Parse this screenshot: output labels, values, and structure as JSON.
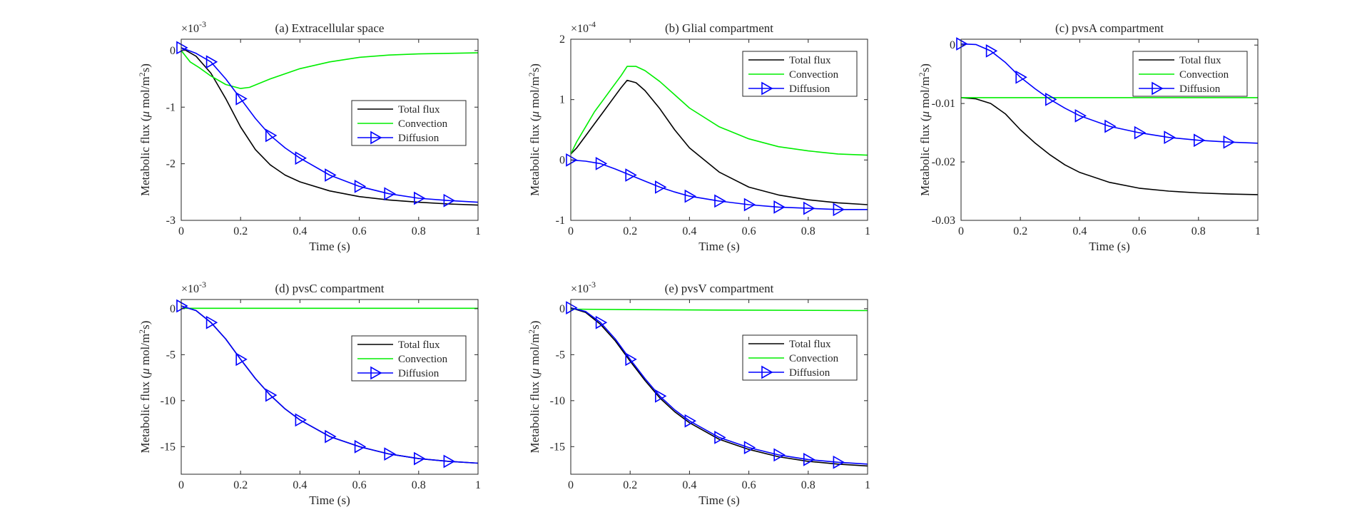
{
  "chart_data": [
    {
      "type": "line",
      "title": "(a) Extracellular space",
      "xlabel": "Time (s)",
      "ylabel_prefix": "Metabolic flux (",
      "ylabel_mu": "μ",
      "ylabel_unit": " mol/m",
      "ylabel_sup": "2",
      "ylabel_suffix": "s)",
      "exp_base": "×10",
      "exp_power": "-3",
      "xlim": [
        0,
        1
      ],
      "ylim": [
        -3,
        0.2
      ],
      "xticks": [
        0,
        0.2,
        0.4,
        0.6,
        0.8,
        1
      ],
      "xtick_labels": [
        "0",
        "0.2",
        "0.4",
        "0.6",
        "0.8",
        "1"
      ],
      "yticks": [
        -3,
        -2,
        -1,
        0
      ],
      "ytick_labels": [
        "-3",
        "-2",
        "-1",
        "0"
      ],
      "legend_position": "center-right",
      "series": [
        {
          "name": "Total flux",
          "color": "#000000",
          "marker": "none",
          "x": [
            0,
            0.05,
            0.1,
            0.15,
            0.2,
            0.25,
            0.3,
            0.35,
            0.4,
            0.5,
            0.6,
            0.7,
            0.8,
            0.9,
            1.0
          ],
          "y": [
            0.05,
            -0.1,
            -0.4,
            -0.85,
            -1.35,
            -1.75,
            -2.02,
            -2.2,
            -2.32,
            -2.48,
            -2.58,
            -2.64,
            -2.68,
            -2.71,
            -2.73
          ]
        },
        {
          "name": "Convection",
          "color": "#00ee00",
          "marker": "none",
          "x": [
            0,
            0.03,
            0.06,
            0.1,
            0.15,
            0.2,
            0.23,
            0.3,
            0.4,
            0.5,
            0.6,
            0.7,
            0.8,
            0.9,
            1.0
          ],
          "y": [
            0,
            -0.2,
            -0.3,
            -0.45,
            -0.6,
            -0.67,
            -0.65,
            -0.5,
            -0.32,
            -0.2,
            -0.12,
            -0.08,
            -0.06,
            -0.05,
            -0.04
          ]
        },
        {
          "name": "Diffusion",
          "color": "#0000ff",
          "marker": "triangle-right",
          "x": [
            0,
            0.05,
            0.1,
            0.15,
            0.2,
            0.25,
            0.3,
            0.35,
            0.4,
            0.5,
            0.6,
            0.7,
            0.8,
            0.9,
            1.0
          ],
          "y": [
            0.05,
            -0.05,
            -0.2,
            -0.5,
            -0.85,
            -1.2,
            -1.5,
            -1.72,
            -1.9,
            -2.2,
            -2.4,
            -2.53,
            -2.61,
            -2.65,
            -2.68
          ],
          "marker_x": [
            0,
            0.1,
            0.2,
            0.3,
            0.4,
            0.5,
            0.6,
            0.7,
            0.8,
            0.9
          ]
        }
      ]
    },
    {
      "type": "line",
      "title": "(b) Glial compartment",
      "xlabel": "Time (s)",
      "ylabel_prefix": "Metabolic flux (",
      "ylabel_mu": "μ",
      "ylabel_unit": " mol/m",
      "ylabel_sup": "2",
      "ylabel_suffix": "s)",
      "exp_base": "×10",
      "exp_power": "-4",
      "xlim": [
        0,
        1
      ],
      "ylim": [
        -1,
        2
      ],
      "xticks": [
        0,
        0.2,
        0.4,
        0.6,
        0.8,
        1
      ],
      "xtick_labels": [
        "0",
        "0.2",
        "0.4",
        "0.6",
        "0.8",
        "1"
      ],
      "yticks": [
        -1,
        0,
        1,
        2
      ],
      "ytick_labels": [
        "-1",
        "0",
        "1",
        "2"
      ],
      "legend_position": "top-right",
      "series": [
        {
          "name": "Total flux",
          "color": "#000000",
          "marker": "none",
          "x": [
            0,
            0.02,
            0.05,
            0.08,
            0.11,
            0.14,
            0.17,
            0.19,
            0.22,
            0.25,
            0.3,
            0.35,
            0.4,
            0.5,
            0.6,
            0.7,
            0.8,
            0.9,
            1.0
          ],
          "y": [
            0.1,
            0.2,
            0.4,
            0.6,
            0.8,
            1.0,
            1.2,
            1.32,
            1.28,
            1.15,
            0.85,
            0.5,
            0.2,
            -0.2,
            -0.45,
            -0.58,
            -0.66,
            -0.71,
            -0.74
          ]
        },
        {
          "name": "Convection",
          "color": "#00ee00",
          "marker": "none",
          "x": [
            0,
            0.02,
            0.05,
            0.08,
            0.11,
            0.14,
            0.17,
            0.19,
            0.22,
            0.25,
            0.3,
            0.35,
            0.4,
            0.5,
            0.6,
            0.7,
            0.8,
            0.9,
            1.0
          ],
          "y": [
            0.1,
            0.3,
            0.55,
            0.8,
            1.0,
            1.2,
            1.4,
            1.55,
            1.55,
            1.48,
            1.3,
            1.08,
            0.86,
            0.55,
            0.35,
            0.22,
            0.15,
            0.1,
            0.08
          ]
        },
        {
          "name": "Diffusion",
          "color": "#0000ff",
          "marker": "triangle-right",
          "x": [
            0,
            0.05,
            0.1,
            0.15,
            0.2,
            0.25,
            0.3,
            0.35,
            0.4,
            0.5,
            0.6,
            0.7,
            0.8,
            0.9,
            1.0
          ],
          "y": [
            0,
            -0.02,
            -0.06,
            -0.15,
            -0.25,
            -0.35,
            -0.45,
            -0.53,
            -0.6,
            -0.68,
            -0.74,
            -0.78,
            -0.8,
            -0.82,
            -0.82
          ],
          "marker_x": [
            0,
            0.1,
            0.2,
            0.3,
            0.4,
            0.5,
            0.6,
            0.7,
            0.8,
            0.9
          ]
        }
      ]
    },
    {
      "type": "line",
      "title": "(c) pvsA compartment",
      "xlabel": "Time (s)",
      "ylabel_prefix": "Metabolic flux (",
      "ylabel_mu": "μ",
      "ylabel_unit": " mol/m",
      "ylabel_sup": "2",
      "ylabel_suffix": "s)",
      "exp_base": "",
      "exp_power": "",
      "xlim": [
        0,
        1
      ],
      "ylim": [
        -0.03,
        0.001
      ],
      "xticks": [
        0,
        0.2,
        0.4,
        0.6,
        0.8,
        1
      ],
      "xtick_labels": [
        "0",
        "0.2",
        "0.4",
        "0.6",
        "0.8",
        "1"
      ],
      "yticks": [
        -0.03,
        -0.02,
        -0.01,
        0
      ],
      "ytick_labels": [
        "-0.03",
        "-0.02",
        "-0.01",
        "0"
      ],
      "legend_position": "top-right",
      "series": [
        {
          "name": "Total flux",
          "color": "#000000",
          "marker": "none",
          "x": [
            0,
            0.05,
            0.1,
            0.15,
            0.2,
            0.25,
            0.3,
            0.35,
            0.4,
            0.5,
            0.6,
            0.7,
            0.8,
            0.9,
            1.0
          ],
          "y": [
            -0.009,
            -0.0092,
            -0.01,
            -0.0118,
            -0.0145,
            -0.0168,
            -0.0188,
            -0.0205,
            -0.0218,
            -0.0235,
            -0.0245,
            -0.025,
            -0.0253,
            -0.0255,
            -0.0256
          ]
        },
        {
          "name": "Convection",
          "color": "#00ee00",
          "marker": "none",
          "x": [
            0,
            0.5,
            1.0
          ],
          "y": [
            -0.009,
            -0.009,
            -0.009
          ]
        },
        {
          "name": "Diffusion",
          "color": "#0000ff",
          "marker": "triangle-right",
          "x": [
            0,
            0.05,
            0.1,
            0.15,
            0.2,
            0.25,
            0.3,
            0.35,
            0.4,
            0.5,
            0.6,
            0.7,
            0.8,
            0.9,
            1.0
          ],
          "y": [
            0.0002,
            0.0001,
            -0.001,
            -0.003,
            -0.0055,
            -0.0075,
            -0.0093,
            -0.0108,
            -0.0121,
            -0.0139,
            -0.015,
            -0.0158,
            -0.0163,
            -0.0166,
            -0.0168
          ],
          "marker_x": [
            0,
            0.1,
            0.2,
            0.3,
            0.4,
            0.5,
            0.6,
            0.7,
            0.8,
            0.9
          ]
        }
      ]
    },
    {
      "type": "line",
      "title": "(d) pvsC compartment",
      "xlabel": "Time (s)",
      "ylabel_prefix": "Metabolic flux (",
      "ylabel_mu": "μ",
      "ylabel_unit": " mol/m",
      "ylabel_sup": "2",
      "ylabel_suffix": "s)",
      "exp_base": "×10",
      "exp_power": "-3",
      "xlim": [
        0,
        1
      ],
      "ylim": [
        -18,
        1
      ],
      "xticks": [
        0,
        0.2,
        0.4,
        0.6,
        0.8,
        1
      ],
      "xtick_labels": [
        "0",
        "0.2",
        "0.4",
        "0.6",
        "0.8",
        "1"
      ],
      "yticks": [
        -15,
        -10,
        -5,
        0
      ],
      "ytick_labels": [
        "-15",
        "-10",
        "-5",
        "0"
      ],
      "legend_position": "center-right",
      "series": [
        {
          "name": "Total flux",
          "color": "#000000",
          "marker": "none",
          "x": [
            0,
            0.05,
            0.1,
            0.15,
            0.2,
            0.25,
            0.3,
            0.35,
            0.4,
            0.5,
            0.6,
            0.7,
            0.8,
            0.9,
            1.0
          ],
          "y": [
            0.3,
            -0.2,
            -1.5,
            -3.3,
            -5.5,
            -7.6,
            -9.4,
            -10.9,
            -12.1,
            -13.9,
            -15.0,
            -15.8,
            -16.3,
            -16.6,
            -16.8
          ]
        },
        {
          "name": "Convection",
          "color": "#00ee00",
          "marker": "none",
          "x": [
            0,
            0.5,
            1.0
          ],
          "y": [
            0.05,
            0.05,
            0.05
          ]
        },
        {
          "name": "Diffusion",
          "color": "#0000ff",
          "marker": "triangle-right",
          "x": [
            0,
            0.05,
            0.1,
            0.15,
            0.2,
            0.25,
            0.3,
            0.35,
            0.4,
            0.5,
            0.6,
            0.7,
            0.8,
            0.9,
            1.0
          ],
          "y": [
            0.3,
            -0.2,
            -1.5,
            -3.3,
            -5.5,
            -7.6,
            -9.4,
            -10.9,
            -12.1,
            -13.9,
            -15.0,
            -15.8,
            -16.3,
            -16.6,
            -16.8
          ],
          "marker_x": [
            0,
            0.1,
            0.2,
            0.3,
            0.4,
            0.5,
            0.6,
            0.7,
            0.8,
            0.9
          ]
        }
      ]
    },
    {
      "type": "line",
      "title": "(e) pvsV compartment",
      "xlabel": "Time (s)",
      "ylabel_prefix": "Metabolic flux (",
      "ylabel_mu": "μ",
      "ylabel_unit": " mol/m",
      "ylabel_sup": "2",
      "ylabel_suffix": "s)",
      "exp_base": "×10",
      "exp_power": "-3",
      "xlim": [
        0,
        1
      ],
      "ylim": [
        -18,
        1
      ],
      "xticks": [
        0,
        0.2,
        0.4,
        0.6,
        0.8,
        1
      ],
      "xtick_labels": [
        "0",
        "0.2",
        "0.4",
        "0.6",
        "0.8",
        "1"
      ],
      "yticks": [
        -15,
        -10,
        -5,
        0
      ],
      "ytick_labels": [
        "-15",
        "-10",
        "-5",
        "0"
      ],
      "legend_position": "center-right",
      "series": [
        {
          "name": "Total flux",
          "color": "#000000",
          "marker": "none",
          "x": [
            0,
            0.05,
            0.1,
            0.15,
            0.2,
            0.25,
            0.3,
            0.35,
            0.4,
            0.5,
            0.6,
            0.7,
            0.8,
            0.9,
            1.0
          ],
          "y": [
            0.1,
            -0.4,
            -1.7,
            -3.5,
            -5.7,
            -7.8,
            -9.7,
            -11.2,
            -12.4,
            -14.2,
            -15.3,
            -16.1,
            -16.6,
            -16.9,
            -17.1
          ]
        },
        {
          "name": "Convection",
          "color": "#00ee00",
          "marker": "none",
          "x": [
            0,
            0.2,
            0.5,
            1.0
          ],
          "y": [
            -0.05,
            -0.1,
            -0.15,
            -0.2
          ]
        },
        {
          "name": "Diffusion",
          "color": "#0000ff",
          "marker": "triangle-right",
          "x": [
            0,
            0.05,
            0.1,
            0.15,
            0.2,
            0.25,
            0.3,
            0.35,
            0.4,
            0.5,
            0.6,
            0.7,
            0.8,
            0.9,
            1.0
          ],
          "y": [
            0.1,
            -0.3,
            -1.5,
            -3.3,
            -5.5,
            -7.6,
            -9.5,
            -11.0,
            -12.2,
            -14.0,
            -15.1,
            -15.9,
            -16.4,
            -16.7,
            -16.9
          ],
          "marker_x": [
            0,
            0.1,
            0.2,
            0.3,
            0.4,
            0.5,
            0.6,
            0.7,
            0.8,
            0.9
          ]
        }
      ]
    }
  ]
}
